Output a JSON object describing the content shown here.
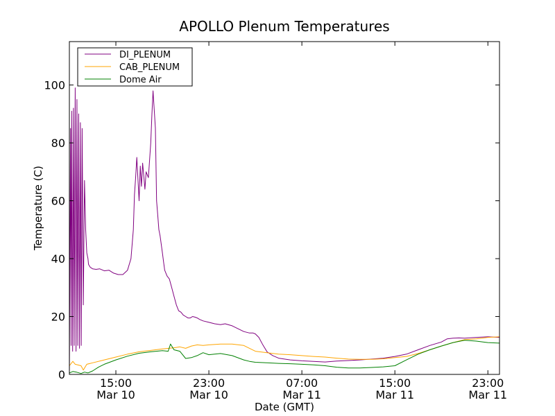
{
  "chart_data": {
    "type": "line",
    "title": "APOLLO Plenum Temperatures",
    "xlabel": "Date (GMT)",
    "ylabel": "Temperature (C)",
    "x_units": "hours since 2013-03-10 11:00 GMT",
    "xlim": [
      0,
      37
    ],
    "ylim": [
      0,
      115
    ],
    "y_ticks": [
      0,
      20,
      40,
      60,
      80,
      100
    ],
    "x_ticks": [
      {
        "x": 4,
        "line1": "15:00",
        "line2": "Mar 10"
      },
      {
        "x": 12,
        "line1": "23:00",
        "line2": "Mar 10"
      },
      {
        "x": 20,
        "line1": "07:00",
        "line2": "Mar 11"
      },
      {
        "x": 28,
        "line1": "15:00",
        "line2": "Mar 11"
      },
      {
        "x": 36,
        "line1": "23:00",
        "line2": "Mar 11"
      }
    ],
    "legend_position": "top-left",
    "series": [
      {
        "name": "DI_PLENUM",
        "color": "#800080",
        "x": [
          0.0,
          0.1,
          0.15,
          0.2,
          0.28,
          0.35,
          0.42,
          0.5,
          0.57,
          0.65,
          0.72,
          0.8,
          0.87,
          0.95,
          1.02,
          1.1,
          1.2,
          1.3,
          1.4,
          1.5,
          1.6,
          1.65,
          1.8,
          2,
          2.3,
          2.6,
          3,
          3.4,
          3.8,
          4.2,
          4.6,
          5,
          5.3,
          5.5,
          5.6,
          5.7,
          5.8,
          6,
          6.1,
          6.2,
          6.3,
          6.5,
          6.6,
          6.8,
          6.9,
          7,
          7.1,
          7.2,
          7.4,
          7.5,
          7.6,
          7.7,
          7.8,
          8,
          8.1,
          8.2,
          8.4,
          8.6,
          8.8,
          9,
          9.2,
          9.4,
          9.6,
          9.8,
          10,
          10.2,
          10.4,
          10.6,
          10.8,
          11,
          11.2,
          11.5,
          12,
          12.5,
          13,
          13.4,
          14,
          14.5,
          15,
          15.5,
          15.8,
          16,
          16.3,
          16.6,
          17,
          17.5,
          18,
          19,
          20,
          21,
          22,
          23,
          24,
          25,
          26,
          27,
          28,
          29,
          30,
          31,
          32,
          32.5,
          33,
          33.5,
          34,
          35,
          36,
          37
        ],
        "y": [
          0,
          85,
          10,
          91,
          8,
          92,
          10,
          99,
          8,
          95,
          10,
          90,
          9,
          87,
          10,
          85,
          24,
          67,
          50,
          42,
          40,
          38,
          37,
          36.5,
          36.3,
          36.5,
          35.8,
          36,
          35,
          34.5,
          34.5,
          36,
          40,
          50,
          62,
          68,
          75,
          60,
          72,
          65,
          73,
          64,
          70,
          68,
          74,
          80,
          90,
          98,
          85,
          60,
          55,
          50,
          48,
          42,
          39,
          36,
          34,
          33,
          30,
          27,
          24,
          22,
          21.5,
          20.5,
          20,
          19.5,
          19.5,
          20,
          19.8,
          19.5,
          19,
          18.5,
          18,
          17.5,
          17.2,
          17.5,
          16.8,
          15.8,
          14.8,
          14.3,
          14.3,
          14,
          12.8,
          10.5,
          7.8,
          6.5,
          5.6,
          5.0,
          4.7,
          4.5,
          4.3,
          4.6,
          4.8,
          5.0,
          5.3,
          5.6,
          6.2,
          7.0,
          8.5,
          10,
          11.2,
          12.3,
          12.5,
          12.6,
          12.5,
          12.8,
          13,
          12.8
        ]
      },
      {
        "name": "CAB_PLENUM",
        "color": "#ffa500",
        "x": [
          0,
          0.3,
          0.5,
          0.8,
          1.0,
          1.2,
          1.5,
          2,
          3,
          4,
          5,
          6,
          7,
          8,
          9,
          9.5,
          10,
          10.5,
          11,
          11.5,
          12,
          13,
          14,
          15,
          15.5,
          16,
          17,
          18,
          19,
          20,
          21,
          22,
          23,
          24,
          25,
          26,
          27,
          28,
          29,
          30,
          31,
          32,
          33,
          34,
          35,
          36,
          37
        ],
        "y": [
          3,
          4.5,
          3.5,
          3.2,
          3.0,
          1.5,
          3.5,
          4.0,
          5.0,
          6.0,
          7.0,
          7.8,
          8.3,
          8.8,
          9.2,
          9.5,
          9.0,
          9.8,
          10.2,
          10.0,
          10.2,
          10.5,
          10.5,
          10.0,
          9.0,
          8.0,
          7.5,
          7.0,
          6.8,
          6.5,
          6.2,
          6.0,
          5.6,
          5.3,
          5.2,
          5.2,
          5.4,
          5.8,
          6.2,
          7.2,
          8.5,
          9.8,
          11.0,
          12.0,
          12.3,
          12.8,
          13.0
        ]
      },
      {
        "name": "Dome Air",
        "color": "#008000",
        "x": [
          0,
          0.3,
          0.6,
          1.0,
          1.3,
          1.6,
          2,
          2.5,
          3,
          4,
          5,
          6,
          7,
          8,
          8.5,
          8.7,
          9,
          9.5,
          10,
          10.5,
          11,
          11.5,
          12,
          13,
          14,
          15,
          15.5,
          16,
          17,
          18,
          19,
          20,
          21,
          22,
          23,
          24,
          25,
          26,
          27,
          28,
          29,
          30,
          31,
          32,
          33,
          34,
          35,
          36,
          37
        ],
        "y": [
          0.5,
          1.0,
          0.8,
          0.3,
          0.8,
          0.5,
          1.2,
          2.5,
          3.5,
          5.0,
          6.3,
          7.3,
          7.8,
          8.2,
          8.0,
          10.5,
          8.5,
          8.0,
          5.5,
          5.8,
          6.5,
          7.5,
          6.8,
          7.2,
          6.5,
          5.0,
          4.5,
          4.2,
          4.0,
          3.8,
          3.7,
          3.5,
          3.3,
          3.0,
          2.5,
          2.2,
          2.2,
          2.4,
          2.6,
          3.0,
          5.0,
          7.0,
          8.5,
          9.8,
          11.0,
          11.8,
          11.5,
          11.0,
          10.8
        ]
      }
    ]
  }
}
